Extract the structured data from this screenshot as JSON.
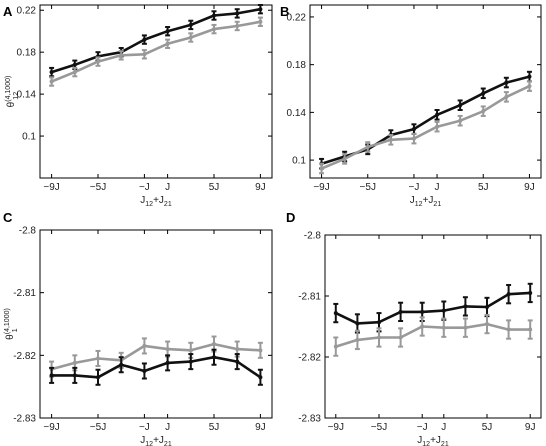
{
  "chart_data": [
    {
      "type": "line",
      "panel_label": "A",
      "xlabel_main": "J",
      "xlabel_sub": "12",
      "xlabel_rest": "+J",
      "xlabel_sub2": "21",
      "ylabel_main": "θ",
      "ylabel_sup": "(4,1000)",
      "ylabel_sub": "12",
      "xlim": [
        -10,
        10
      ],
      "ylim": [
        0.06,
        0.225
      ],
      "xticks": [
        {
          "v": -9,
          "label": "−9J"
        },
        {
          "v": -5,
          "label": "−5J"
        },
        {
          "v": -1,
          "label": "−J"
        },
        {
          "v": 1,
          "label": "J"
        },
        {
          "v": 5,
          "label": "5J"
        },
        {
          "v": 9,
          "label": "9J"
        }
      ],
      "yticks": [
        {
          "v": 0.1,
          "label": "0.1"
        },
        {
          "v": 0.14,
          "label": "0.14"
        },
        {
          "v": 0.18,
          "label": "0.18"
        },
        {
          "v": 0.22,
          "label": "0.22"
        }
      ],
      "x": [
        -9,
        -7,
        -5,
        -3,
        -1,
        1,
        3,
        5,
        7,
        9
      ],
      "series": [
        {
          "color": "#111111",
          "values": [
            0.161,
            0.168,
            0.176,
            0.18,
            0.192,
            0.2,
            0.206,
            0.215,
            0.217,
            0.221
          ],
          "err": 0.004
        },
        {
          "color": "#999999",
          "values": [
            0.152,
            0.161,
            0.171,
            0.177,
            0.178,
            0.188,
            0.194,
            0.202,
            0.205,
            0.209
          ],
          "err": 0.004
        }
      ]
    },
    {
      "type": "line",
      "panel_label": "B",
      "xlabel_main": "J",
      "xlabel_sub": "12",
      "xlabel_rest": "+J",
      "xlabel_sub2": "21",
      "ylabel_main": "",
      "ylabel_sup": "",
      "ylabel_sub": "",
      "xlim": [
        -10,
        10
      ],
      "ylim": [
        0.085,
        0.23
      ],
      "xticks": [
        {
          "v": -9,
          "label": "−9J"
        },
        {
          "v": -5,
          "label": "−5J"
        },
        {
          "v": -1,
          "label": "−J"
        },
        {
          "v": 1,
          "label": "J"
        },
        {
          "v": 5,
          "label": "5J"
        },
        {
          "v": 9,
          "label": "9J"
        }
      ],
      "yticks": [
        {
          "v": 0.1,
          "label": "0.1"
        },
        {
          "v": 0.14,
          "label": "0.14"
        },
        {
          "v": 0.18,
          "label": "0.18"
        },
        {
          "v": 0.22,
          "label": "0.22"
        }
      ],
      "x": [
        -9,
        -7,
        -5,
        -3,
        -1,
        1,
        3,
        5,
        7,
        9
      ],
      "series": [
        {
          "color": "#111111",
          "values": [
            0.097,
            0.103,
            0.109,
            0.121,
            0.126,
            0.138,
            0.146,
            0.156,
            0.165,
            0.17
          ],
          "err": 0.004
        },
        {
          "color": "#999999",
          "values": [
            0.093,
            0.101,
            0.111,
            0.117,
            0.118,
            0.128,
            0.133,
            0.141,
            0.153,
            0.162
          ],
          "err": 0.004
        }
      ]
    },
    {
      "type": "line",
      "panel_label": "C",
      "xlabel_main": "J",
      "xlabel_sub": "12",
      "xlabel_rest": "+J",
      "xlabel_sub2": "21",
      "ylabel_main": "θ",
      "ylabel_sup": "(4,1000)",
      "ylabel_sub": "1",
      "xlim": [
        -10,
        10
      ],
      "ylim": [
        -2.83,
        -2.8
      ],
      "xticks": [
        {
          "v": -9,
          "label": "−9J"
        },
        {
          "v": -5,
          "label": "−5J"
        },
        {
          "v": -1,
          "label": "−J"
        },
        {
          "v": 1,
          "label": "J"
        },
        {
          "v": 5,
          "label": "5J"
        },
        {
          "v": 9,
          "label": "9J"
        }
      ],
      "yticks": [
        {
          "v": -2.8,
          "label": "-2.8"
        },
        {
          "v": -2.81,
          "label": "-2.81"
        },
        {
          "v": -2.82,
          "label": "-2.82"
        },
        {
          "v": -2.83,
          "label": "-2.83"
        }
      ],
      "x": [
        -9,
        -7,
        -5,
        -3,
        -1,
        1,
        3,
        5,
        7,
        9
      ],
      "series": [
        {
          "color": "#999999",
          "values": [
            -2.8222,
            -2.8212,
            -2.8205,
            -2.8208,
            -2.8185,
            -2.819,
            -2.8192,
            -2.8182,
            -2.819,
            -2.8192
          ],
          "err": 0.0012
        },
        {
          "color": "#111111",
          "values": [
            -2.8232,
            -2.8232,
            -2.8235,
            -2.8215,
            -2.8225,
            -2.8212,
            -2.821,
            -2.8203,
            -2.821,
            -2.8235
          ],
          "err": 0.0012
        }
      ]
    },
    {
      "type": "line",
      "panel_label": "D",
      "xlabel_main": "J",
      "xlabel_sub": "12",
      "xlabel_rest": "+J",
      "xlabel_sub2": "21",
      "ylabel_main": "",
      "ylabel_sup": "",
      "ylabel_sub": "",
      "xlim": [
        -10,
        10
      ],
      "ylim": [
        -2.83,
        -2.8
      ],
      "xticks": [
        {
          "v": -9,
          "label": "−9J"
        },
        {
          "v": -5,
          "label": "−5J"
        },
        {
          "v": -1,
          "label": "−J"
        },
        {
          "v": 1,
          "label": "J"
        },
        {
          "v": 5,
          "label": "5J"
        },
        {
          "v": 9,
          "label": "9J"
        }
      ],
      "yticks": [
        {
          "v": -2.8,
          "label": "-2.8"
        },
        {
          "v": -2.81,
          "label": "-2.81"
        },
        {
          "v": -2.82,
          "label": "-2.82"
        },
        {
          "v": -2.83,
          "label": "-2.83"
        }
      ],
      "x": [
        -9,
        -7,
        -5,
        -3,
        -1,
        1,
        3,
        5,
        7,
        9
      ],
      "series": [
        {
          "color": "#111111",
          "values": [
            -2.8128,
            -2.8145,
            -2.8143,
            -2.8126,
            -2.8126,
            -2.8124,
            -2.8117,
            -2.8118,
            -2.8097,
            -2.8095
          ],
          "err": 0.0015
        },
        {
          "color": "#999999",
          "values": [
            -2.8183,
            -2.8172,
            -2.8168,
            -2.8168,
            -2.815,
            -2.8152,
            -2.8152,
            -2.8146,
            -2.8155,
            -2.8155
          ],
          "err": 0.0015
        }
      ]
    }
  ]
}
